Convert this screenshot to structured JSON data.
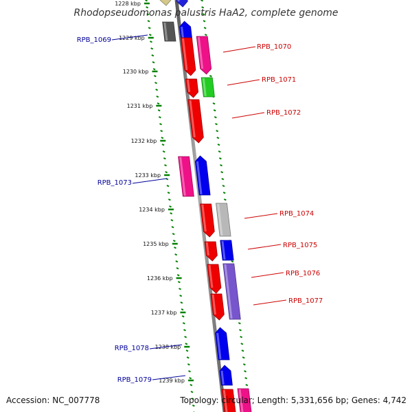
{
  "title": "Rhodopseudomonas palustris HaA2, complete genome",
  "footer": {
    "accession": "Accession: NC_007778",
    "stats": "Topology: circular; Length: 5,331,656 bp; Genes: 4,742"
  },
  "colors": {
    "backbone": "#808080",
    "tick": "#008000",
    "label_forward": "#cc0000",
    "label_reverse": "#000099"
  },
  "kbp_labels": [
    "1228 kbp",
    "1229 kbp",
    "1230 kbp",
    "1231 kbp",
    "1232 kbp",
    "1233 kbp",
    "1234 kbp",
    "1235 kbp",
    "1236 kbp",
    "1237 kbp",
    "1238 kbp",
    "1239 kbp"
  ],
  "genes": [
    {
      "name": "RPB_1069",
      "strand": "-"
    },
    {
      "name": "RPB_1070",
      "strand": "+"
    },
    {
      "name": "RPB_1071",
      "strand": "+"
    },
    {
      "name": "RPB_1072",
      "strand": "+"
    },
    {
      "name": "RPB_1073",
      "strand": "-"
    },
    {
      "name": "RPB_1074",
      "strand": "+"
    },
    {
      "name": "RPB_1075",
      "strand": "+"
    },
    {
      "name": "RPB_1076",
      "strand": "+"
    },
    {
      "name": "RPB_1077",
      "strand": "+"
    },
    {
      "name": "RPB_1078",
      "strand": "-"
    },
    {
      "name": "RPB_1079",
      "strand": "-"
    }
  ]
}
